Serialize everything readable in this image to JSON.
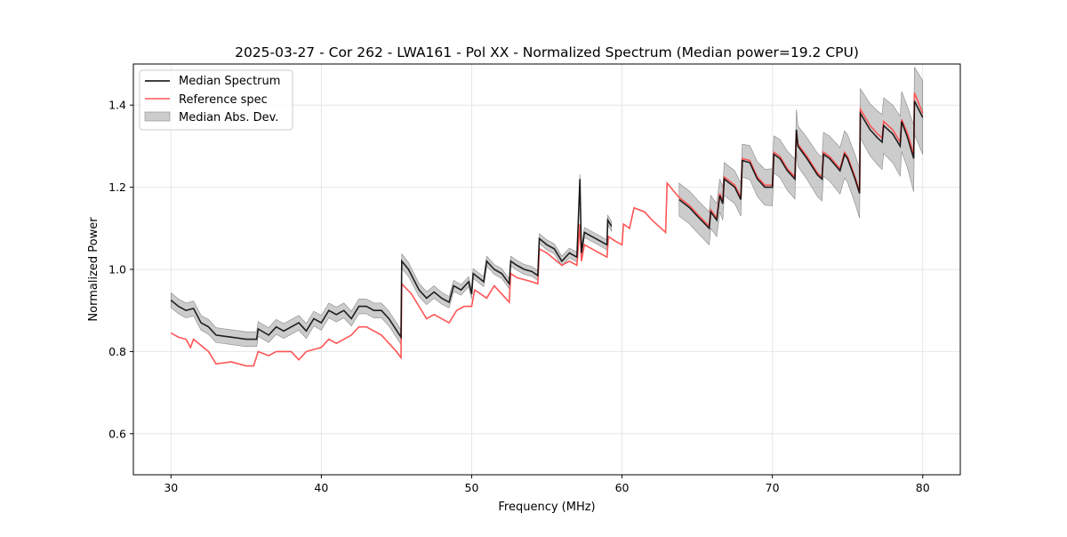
{
  "chart_data": {
    "type": "line",
    "title": "2025-03-27 - Cor 262 - LWA161 - Pol XX - Normalized Spectrum (Median power=19.2 CPU)",
    "xlabel": "Frequency (MHz)",
    "ylabel": "Normalized Power",
    "xlim": [
      27.5,
      82.5
    ],
    "ylim": [
      0.5,
      1.5
    ],
    "xticks": [
      30,
      40,
      50,
      60,
      70,
      80
    ],
    "yticks": [
      0.6,
      0.8,
      1.0,
      1.2,
      1.4
    ],
    "grid": true,
    "legend_position": "top-left",
    "legend": [
      "Median Spectrum",
      "Reference spec",
      "Median Abs. Dev."
    ],
    "colors": {
      "median": "#000000",
      "reference": "#ff5555",
      "mad": "#b0b0b0"
    },
    "median": [
      [
        30,
        0.925
      ],
      [
        30.5,
        0.91
      ],
      [
        31,
        0.9
      ],
      [
        31.5,
        0.905
      ],
      [
        32,
        0.87
      ],
      [
        32.5,
        0.86
      ],
      [
        33,
        0.84
      ],
      [
        34,
        0.835
      ],
      [
        35,
        0.83
      ],
      [
        35.7,
        0.83
      ],
      [
        35.8,
        0.855
      ],
      [
        36.5,
        0.84
      ],
      [
        37,
        0.86
      ],
      [
        37.5,
        0.85
      ],
      [
        38,
        0.86
      ],
      [
        38.5,
        0.87
      ],
      [
        39,
        0.85
      ],
      [
        39.5,
        0.88
      ],
      [
        40,
        0.87
      ],
      [
        40.5,
        0.9
      ],
      [
        41,
        0.89
      ],
      [
        41.5,
        0.9
      ],
      [
        42,
        0.88
      ],
      [
        42.5,
        0.91
      ],
      [
        43,
        0.91
      ],
      [
        43.5,
        0.9
      ],
      [
        44,
        0.9
      ],
      [
        44.5,
        0.88
      ],
      [
        45.3,
        0.835
      ],
      [
        45.35,
        1.02
      ],
      [
        45.8,
        1.0
      ],
      [
        46.5,
        0.95
      ],
      [
        47,
        0.93
      ],
      [
        47.5,
        0.945
      ],
      [
        48,
        0.93
      ],
      [
        48.5,
        0.92
      ],
      [
        48.8,
        0.96
      ],
      [
        49.3,
        0.95
      ],
      [
        49.8,
        0.97
      ],
      [
        50,
        0.94
      ],
      [
        50.1,
        0.99
      ],
      [
        50.8,
        0.97
      ],
      [
        51,
        1.02
      ],
      [
        51.5,
        1.0
      ],
      [
        52,
        0.99
      ],
      [
        52.5,
        0.965
      ],
      [
        52.6,
        1.02
      ],
      [
        53,
        1.01
      ],
      [
        53.5,
        1.0
      ],
      [
        54,
        0.995
      ],
      [
        54.4,
        0.985
      ],
      [
        54.5,
        1.075
      ],
      [
        55,
        1.06
      ],
      [
        55.5,
        1.05
      ],
      [
        56,
        1.02
      ],
      [
        56.5,
        1.04
      ],
      [
        57,
        1.03
      ],
      [
        57.2,
        1.22
      ],
      [
        57.3,
        1.04
      ],
      [
        57.5,
        1.09
      ],
      [
        58,
        1.08
      ],
      [
        58.5,
        1.07
      ],
      [
        59,
        1.06
      ],
      [
        59.05,
        1.12
      ],
      [
        59.3,
        1.105
      ],
      null,
      [
        63.8,
        1.17
      ],
      [
        64.5,
        1.15
      ],
      [
        65,
        1.13
      ],
      [
        65.8,
        1.1
      ],
      [
        65.9,
        1.14
      ],
      [
        66.3,
        1.12
      ],
      [
        66.5,
        1.18
      ],
      [
        66.7,
        1.16
      ],
      [
        66.8,
        1.22
      ],
      [
        67.5,
        1.2
      ],
      [
        67.9,
        1.17
      ],
      [
        68,
        1.265
      ],
      [
        68.5,
        1.26
      ],
      [
        69,
        1.22
      ],
      [
        69.5,
        1.2
      ],
      [
        70,
        1.2
      ],
      [
        70.1,
        1.28
      ],
      [
        70.5,
        1.27
      ],
      [
        71,
        1.24
      ],
      [
        71.5,
        1.22
      ],
      [
        71.6,
        1.34
      ],
      [
        71.7,
        1.3
      ],
      [
        72.3,
        1.27
      ],
      [
        73,
        1.23
      ],
      [
        73.3,
        1.22
      ],
      [
        73.4,
        1.28
      ],
      [
        73.8,
        1.27
      ],
      [
        74.5,
        1.24
      ],
      [
        74.8,
        1.28
      ],
      [
        75,
        1.27
      ],
      [
        75.5,
        1.22
      ],
      [
        75.8,
        1.185
      ],
      [
        75.85,
        1.38
      ],
      [
        76.5,
        1.34
      ],
      [
        77,
        1.32
      ],
      [
        77.3,
        1.31
      ],
      [
        77.4,
        1.35
      ],
      [
        78,
        1.33
      ],
      [
        78.5,
        1.3
      ],
      [
        78.6,
        1.36
      ],
      [
        79,
        1.32
      ],
      [
        79.4,
        1.27
      ],
      [
        79.45,
        1.41
      ],
      [
        80,
        1.37
      ]
    ],
    "reference": [
      [
        30,
        0.845
      ],
      [
        30.5,
        0.835
      ],
      [
        31,
        0.83
      ],
      [
        31.3,
        0.81
      ],
      [
        31.5,
        0.83
      ],
      [
        32,
        0.815
      ],
      [
        32.5,
        0.8
      ],
      [
        33,
        0.77
      ],
      [
        34,
        0.775
      ],
      [
        35,
        0.765
      ],
      [
        35.5,
        0.765
      ],
      [
        35.8,
        0.8
      ],
      [
        36.5,
        0.79
      ],
      [
        37,
        0.8
      ],
      [
        38,
        0.8
      ],
      [
        38.5,
        0.78
      ],
      [
        39,
        0.8
      ],
      [
        40,
        0.81
      ],
      [
        40.5,
        0.83
      ],
      [
        41,
        0.82
      ],
      [
        42,
        0.84
      ],
      [
        42.5,
        0.86
      ],
      [
        43,
        0.86
      ],
      [
        44,
        0.84
      ],
      [
        45,
        0.8
      ],
      [
        45.3,
        0.785
      ],
      [
        45.35,
        0.965
      ],
      [
        46,
        0.94
      ],
      [
        46.5,
        0.91
      ],
      [
        47,
        0.88
      ],
      [
        47.5,
        0.89
      ],
      [
        48,
        0.88
      ],
      [
        48.5,
        0.87
      ],
      [
        49,
        0.9
      ],
      [
        49.5,
        0.91
      ],
      [
        50,
        0.91
      ],
      [
        50.2,
        0.95
      ],
      [
        51,
        0.93
      ],
      [
        51.5,
        0.96
      ],
      [
        52,
        0.94
      ],
      [
        52.5,
        0.92
      ],
      [
        52.6,
        0.99
      ],
      [
        53,
        0.98
      ],
      [
        54,
        0.97
      ],
      [
        54.4,
        0.965
      ],
      [
        54.5,
        1.05
      ],
      [
        55,
        1.04
      ],
      [
        56,
        1.01
      ],
      [
        56.5,
        1.02
      ],
      [
        57,
        1.01
      ],
      [
        57.2,
        1.11
      ],
      [
        57.3,
        1.02
      ],
      [
        57.5,
        1.06
      ],
      [
        58,
        1.05
      ],
      [
        59,
        1.03
      ],
      [
        59.1,
        1.08
      ],
      [
        59.5,
        1.07
      ],
      [
        60,
        1.06
      ],
      [
        60.1,
        1.11
      ],
      [
        60.5,
        1.1
      ],
      [
        60.8,
        1.15
      ],
      [
        61.5,
        1.14
      ],
      [
        62,
        1.12
      ],
      [
        62.9,
        1.09
      ],
      [
        63,
        1.21
      ],
      [
        63.8,
        1.175
      ],
      [
        64.5,
        1.155
      ],
      [
        65,
        1.135
      ],
      [
        65.8,
        1.105
      ],
      [
        65.9,
        1.145
      ],
      [
        66.3,
        1.125
      ],
      [
        66.5,
        1.185
      ],
      [
        66.7,
        1.165
      ],
      [
        66.8,
        1.225
      ],
      [
        67.5,
        1.205
      ],
      [
        67.9,
        1.175
      ],
      [
        68,
        1.27
      ],
      [
        68.5,
        1.265
      ],
      [
        69,
        1.225
      ],
      [
        69.5,
        1.205
      ],
      [
        70,
        1.205
      ],
      [
        70.1,
        1.285
      ],
      [
        70.5,
        1.275
      ],
      [
        71,
        1.245
      ],
      [
        71.5,
        1.225
      ],
      [
        71.6,
        1.33
      ],
      [
        71.7,
        1.305
      ],
      [
        72.3,
        1.275
      ],
      [
        73,
        1.235
      ],
      [
        73.3,
        1.225
      ],
      [
        73.4,
        1.285
      ],
      [
        73.8,
        1.275
      ],
      [
        74.5,
        1.245
      ],
      [
        74.8,
        1.285
      ],
      [
        75,
        1.275
      ],
      [
        75.5,
        1.225
      ],
      [
        75.8,
        1.19
      ],
      [
        75.85,
        1.39
      ],
      [
        76.5,
        1.35
      ],
      [
        77,
        1.33
      ],
      [
        77.3,
        1.32
      ],
      [
        77.4,
        1.36
      ],
      [
        78,
        1.34
      ],
      [
        78.5,
        1.31
      ],
      [
        78.6,
        1.365
      ],
      [
        79,
        1.33
      ],
      [
        79.4,
        1.28
      ],
      [
        79.45,
        1.43
      ],
      [
        80,
        1.38
      ]
    ],
    "mad_halfwidth": [
      [
        30,
        0.018
      ],
      [
        45,
        0.018
      ],
      [
        50,
        0.012
      ],
      [
        57,
        0.012
      ],
      [
        59.3,
        0.012
      ],
      [
        63.8,
        0.04
      ],
      [
        68,
        0.04
      ],
      [
        72,
        0.05
      ],
      [
        75.8,
        0.06
      ],
      [
        79,
        0.075
      ],
      [
        80,
        0.09
      ]
    ]
  }
}
